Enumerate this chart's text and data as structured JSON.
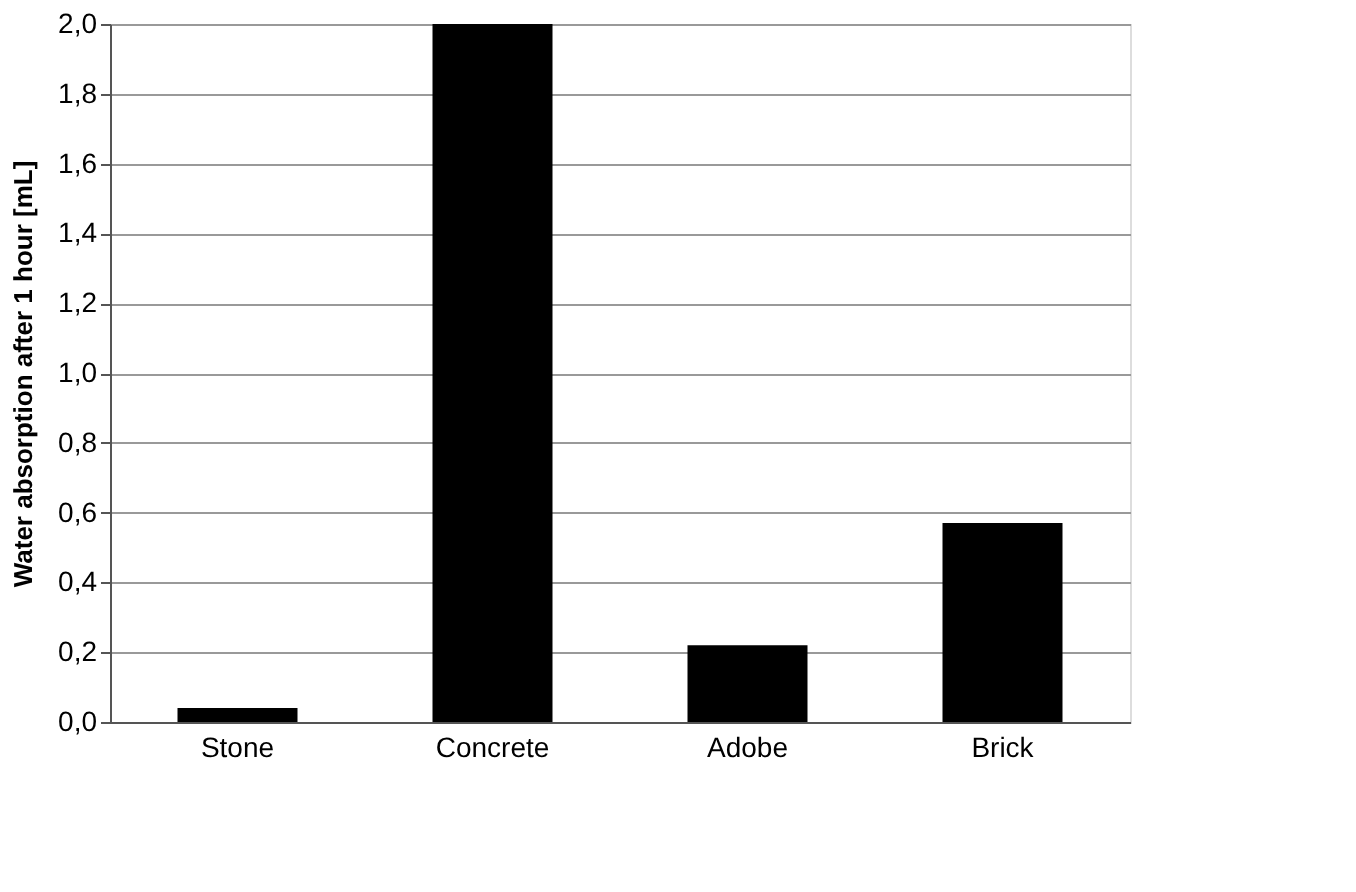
{
  "chart_data": {
    "type": "bar",
    "ylabel": "Water absorption after 1 hour [mL]",
    "categories": [
      "Stone",
      "Concrete",
      "Adobe",
      "Brick"
    ],
    "values": [
      0.04,
      2.0,
      0.22,
      0.57
    ],
    "color": "#000000",
    "ylim": [
      0,
      2.0
    ],
    "yticks": [
      {
        "value": 0,
        "label": "0,0"
      },
      {
        "value": 0.2,
        "label": "0,2"
      },
      {
        "value": 0.4,
        "label": "0,4"
      },
      {
        "value": 0.6,
        "label": "0,6"
      },
      {
        "value": 0.8,
        "label": "0,8"
      },
      {
        "value": 1.0,
        "label": "1,0"
      },
      {
        "value": 1.2,
        "label": "1,2"
      },
      {
        "value": 1.4,
        "label": "1,4"
      },
      {
        "value": 1.6,
        "label": "1,6"
      },
      {
        "value": 1.8,
        "label": "1,8"
      },
      {
        "value": 2.0,
        "label": "2,0"
      }
    ],
    "grid": "y"
  }
}
